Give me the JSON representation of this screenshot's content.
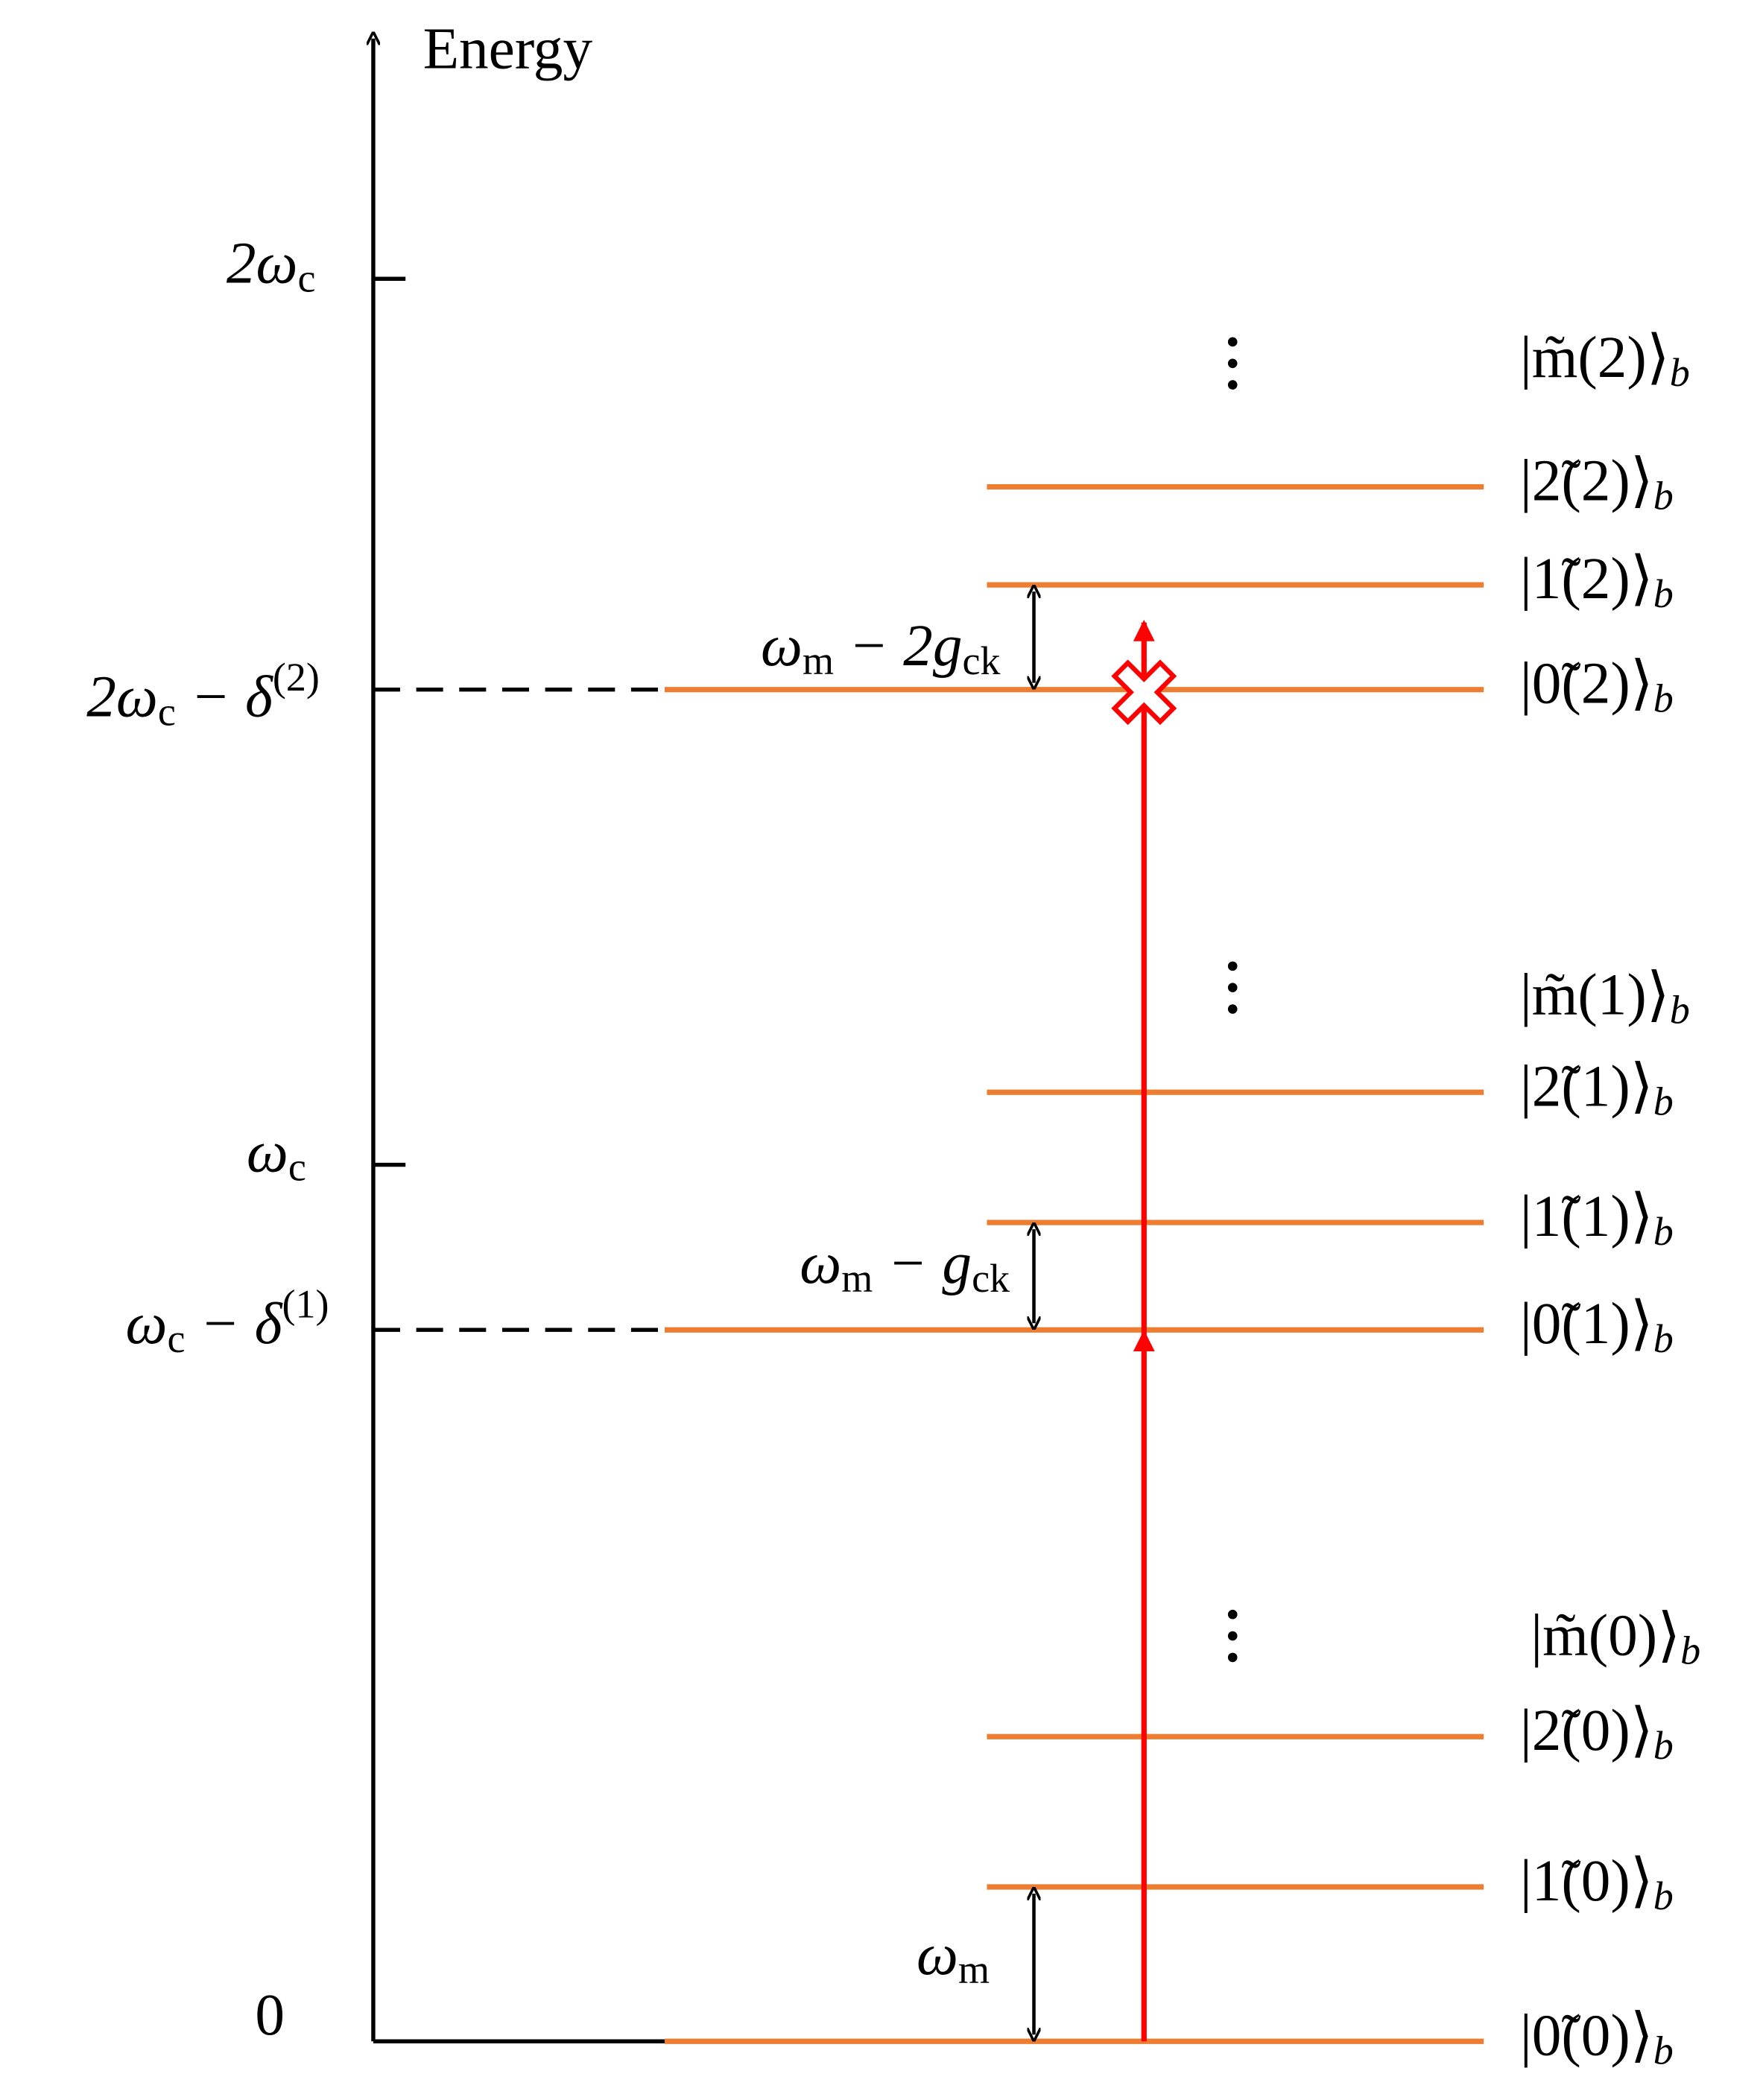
{
  "axis": {
    "label": "Energy"
  },
  "ticks": [
    {
      "label": [
        {
          "t": "2ω"
        },
        {
          "sub": "c"
        }
      ]
    },
    {
      "label": [
        {
          "t": "ω"
        },
        {
          "sub": "c"
        }
      ]
    },
    {
      "label": [
        {
          "t": "0"
        }
      ]
    }
  ],
  "dashed_levels": [
    {
      "label": [
        {
          "t": "2ω"
        },
        {
          "sub": "c"
        },
        {
          "t": " − δ"
        },
        {
          "sup": "(2)"
        }
      ]
    },
    {
      "label": [
        {
          "t": "ω"
        },
        {
          "sub": "c"
        },
        {
          "t": " − δ"
        },
        {
          "sup": "(1)"
        }
      ]
    }
  ],
  "gaps": [
    {
      "label": [
        {
          "t": "ω"
        },
        {
          "sub": "m"
        },
        {
          "t": " − 2g"
        },
        {
          "sub": "ck"
        }
      ]
    },
    {
      "label": [
        {
          "t": "ω"
        },
        {
          "sub": "m"
        },
        {
          "t": " − g"
        },
        {
          "sub": "ck"
        }
      ]
    },
    {
      "label": [
        {
          "t": "ω"
        },
        {
          "sub": "m"
        }
      ]
    }
  ],
  "states": [
    {
      "label": [
        {
          "t": "|m̃(2)⟩"
        },
        {
          "sub": "b"
        }
      ]
    },
    {
      "label": [
        {
          "t": "|2̃(2)⟩"
        },
        {
          "sub": "b"
        }
      ]
    },
    {
      "label": [
        {
          "t": "|1̃(2)⟩"
        },
        {
          "sub": "b"
        }
      ]
    },
    {
      "label": [
        {
          "t": "|0̃(2)⟩"
        },
        {
          "sub": "b"
        }
      ]
    },
    {
      "label": [
        {
          "t": "|m̃(1)⟩"
        },
        {
          "sub": "b"
        }
      ]
    },
    {
      "label": [
        {
          "t": "|2̃(1)⟩"
        },
        {
          "sub": "b"
        }
      ]
    },
    {
      "label": [
        {
          "t": "|1̃(1)⟩"
        },
        {
          "sub": "b"
        }
      ]
    },
    {
      "label": [
        {
          "t": "|0̃(1)⟩"
        },
        {
          "sub": "b"
        }
      ]
    },
    {
      "label": [
        {
          "t": "|m̃(0)⟩"
        },
        {
          "sub": "b"
        }
      ]
    },
    {
      "label": [
        {
          "t": "|2̃(0)⟩"
        },
        {
          "sub": "b"
        }
      ]
    },
    {
      "label": [
        {
          "t": "|1̃(0)⟩"
        },
        {
          "sub": "b"
        }
      ]
    },
    {
      "label": [
        {
          "t": "|0̃(0)⟩"
        },
        {
          "sub": "b"
        }
      ]
    }
  ]
}
